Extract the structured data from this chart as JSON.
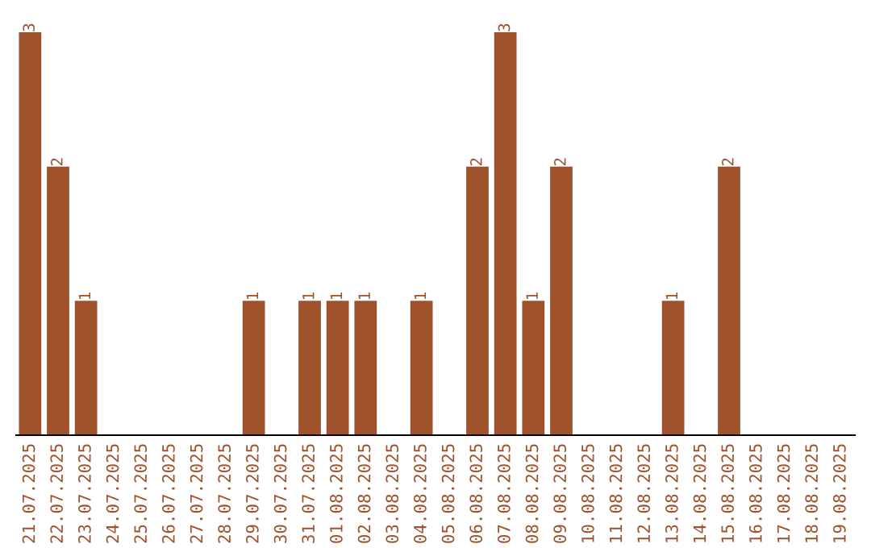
{
  "chart_data": {
    "type": "bar",
    "categories": [
      "21.07.2025",
      "22.07.2025",
      "23.07.2025",
      "24.07.2025",
      "25.07.2025",
      "26.07.2025",
      "27.07.2025",
      "28.07.2025",
      "29.07.2025",
      "30.07.2025",
      "31.07.2025",
      "01.08.2025",
      "02.08.2025",
      "03.08.2025",
      "04.08.2025",
      "05.08.2025",
      "06.08.2025",
      "07.08.2025",
      "08.08.2025",
      "09.08.2025",
      "10.08.2025",
      "11.08.2025",
      "12.08.2025",
      "13.08.2025",
      "14.08.2025",
      "15.08.2025",
      "16.08.2025",
      "17.08.2025",
      "18.08.2025",
      "19.08.2025"
    ],
    "values": [
      3,
      2,
      1,
      0,
      0,
      0,
      0,
      0,
      1,
      0,
      1,
      1,
      1,
      0,
      1,
      0,
      2,
      3,
      1,
      2,
      0,
      0,
      0,
      1,
      0,
      2,
      0,
      0,
      0,
      0
    ],
    "value_labels": [
      "3",
      "2",
      "1",
      null,
      null,
      null,
      null,
      null,
      "1",
      null,
      "1",
      "1",
      "1",
      null,
      "1",
      null,
      "2",
      "3",
      "1",
      "2",
      null,
      null,
      null,
      "1",
      null,
      "2",
      null,
      null,
      null,
      null
    ],
    "color": "#a0522d",
    "tick_labels": "x",
    "grid": false,
    "legend": false
  }
}
